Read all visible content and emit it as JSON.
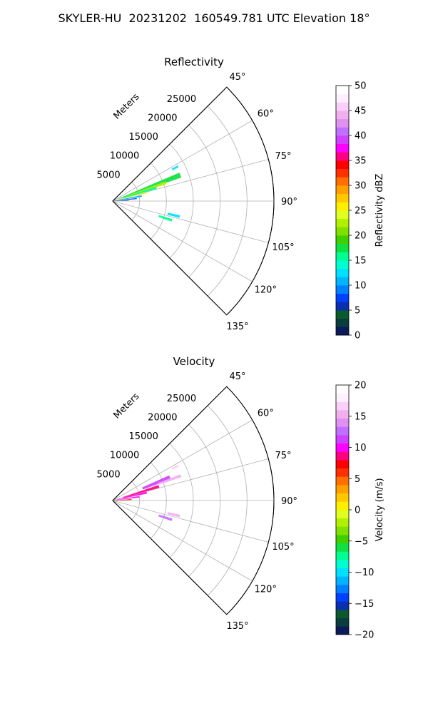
{
  "figure": {
    "suptitle": "SKYLER-HU  20231202  160549.781 UTC Elevation 18°"
  },
  "chart_data": [
    {
      "type": "heatmap",
      "projection": "polar-sector",
      "title": "Reflectivity",
      "range_label": "Meters",
      "theta_range_deg": [
        45,
        135
      ],
      "theta_ticks": [
        "45°",
        "60°",
        "75°",
        "90°",
        "105°",
        "120°",
        "135°"
      ],
      "r_range": [
        0,
        30000
      ],
      "r_ticks": [
        "5000",
        "10000",
        "15000",
        "20000",
        "25000"
      ],
      "grid": true,
      "colorbar": {
        "label": "Reflectivity dBZ",
        "range": [
          0,
          50
        ],
        "ticks": [
          "0",
          "5",
          "10",
          "15",
          "20",
          "25",
          "30",
          "35",
          "40",
          "45",
          "50"
        ],
        "colors": [
          "#0a1a5a",
          "#0a3d3d",
          "#0b5a2e",
          "#0a2fb0",
          "#0040ff",
          "#0080ff",
          "#00b4ff",
          "#00e0ff",
          "#00ffd0",
          "#00ff90",
          "#10e040",
          "#40d000",
          "#80e000",
          "#b0f000",
          "#e0ff20",
          "#ffee00",
          "#ffc800",
          "#ffa000",
          "#ff7000",
          "#ff3000",
          "#ff0000",
          "#ff0080",
          "#ff00ff",
          "#d040ff",
          "#c070ff",
          "#e090f0",
          "#f0b0f0",
          "#f8d0f8",
          "#fff0ff",
          "#ffffff"
        ]
      },
      "echoes": [
        {
          "theta": 62,
          "r0": 12500,
          "r1": 13800,
          "w": 1.6,
          "value": 12
        },
        {
          "theta": 69,
          "r0": 1200,
          "r1": 13500,
          "w": 4.2,
          "value": 18
        },
        {
          "theta": 71,
          "r0": 3000,
          "r1": 10500,
          "w": 3.0,
          "value": 22
        },
        {
          "theta": 73,
          "r0": 2000,
          "r1": 8500,
          "w": 3.2,
          "value": 16
        },
        {
          "theta": 76,
          "r0": 800,
          "r1": 6500,
          "w": 2.2,
          "value": 26
        },
        {
          "theta": 80,
          "r0": 500,
          "r1": 5500,
          "w": 3.2,
          "value": 10
        },
        {
          "theta": 84,
          "r0": 300,
          "r1": 4500,
          "w": 2.6,
          "value": 8
        },
        {
          "theta": 87,
          "r0": 300,
          "r1": 3000,
          "w": 2.0,
          "value": 5
        },
        {
          "theta": 103,
          "r0": 10500,
          "r1": 12800,
          "w": 2.2,
          "value": 12
        },
        {
          "theta": 108,
          "r0": 9000,
          "r1": 11600,
          "w": 2.4,
          "value": 15
        }
      ]
    },
    {
      "type": "heatmap",
      "projection": "polar-sector",
      "title": "Velocity",
      "range_label": "Meters",
      "theta_range_deg": [
        45,
        135
      ],
      "theta_ticks": [
        "45°",
        "60°",
        "75°",
        "90°",
        "105°",
        "120°",
        "135°"
      ],
      "r_range": [
        0,
        30000
      ],
      "r_ticks": [
        "5000",
        "10000",
        "15000",
        "20000",
        "25000"
      ],
      "grid": true,
      "colorbar": {
        "label": "Velocity (m/s)",
        "range": [
          -20,
          20
        ],
        "ticks": [
          "−20",
          "−15",
          "−10",
          "−5",
          "0",
          "5",
          "10",
          "15",
          "20"
        ],
        "colors": [
          "#0a1a5a",
          "#0a3d3d",
          "#0b5a2e",
          "#0a2fb0",
          "#0040ff",
          "#0080ff",
          "#00b4ff",
          "#00e0ff",
          "#00ffd0",
          "#00ff90",
          "#10e040",
          "#40d000",
          "#80e000",
          "#b0f000",
          "#e0ff20",
          "#ffee00",
          "#ffc800",
          "#ffa000",
          "#ff7000",
          "#ff3000",
          "#ff0000",
          "#ff0080",
          "#ff00ff",
          "#d040ff",
          "#c070ff",
          "#e090f0",
          "#f0b0f0",
          "#f8d0f8",
          "#fff0ff",
          "#ffffff"
        ]
      },
      "echoes": [
        {
          "theta": 62,
          "r0": 12500,
          "r1": 13800,
          "w": 1.6,
          "value": 16
        },
        {
          "theta": 68,
          "r0": 6000,
          "r1": 11500,
          "w": 4.0,
          "value": 11
        },
        {
          "theta": 70,
          "r0": 9000,
          "r1": 13500,
          "w": 2.4,
          "value": 15
        },
        {
          "theta": 73,
          "r0": 2000,
          "r1": 9000,
          "w": 3.4,
          "value": 9
        },
        {
          "theta": 77,
          "r0": 800,
          "r1": 6500,
          "w": 3.2,
          "value": 10
        },
        {
          "theta": 82,
          "r0": 500,
          "r1": 5000,
          "w": 3.2,
          "value": 10
        },
        {
          "theta": 87,
          "r0": 200,
          "r1": 3500,
          "w": 2.6,
          "value": 7
        },
        {
          "theta": 103,
          "r0": 10500,
          "r1": 12800,
          "w": 2.2,
          "value": 15
        },
        {
          "theta": 108,
          "r0": 9000,
          "r1": 11600,
          "w": 2.4,
          "value": 12
        }
      ]
    }
  ]
}
